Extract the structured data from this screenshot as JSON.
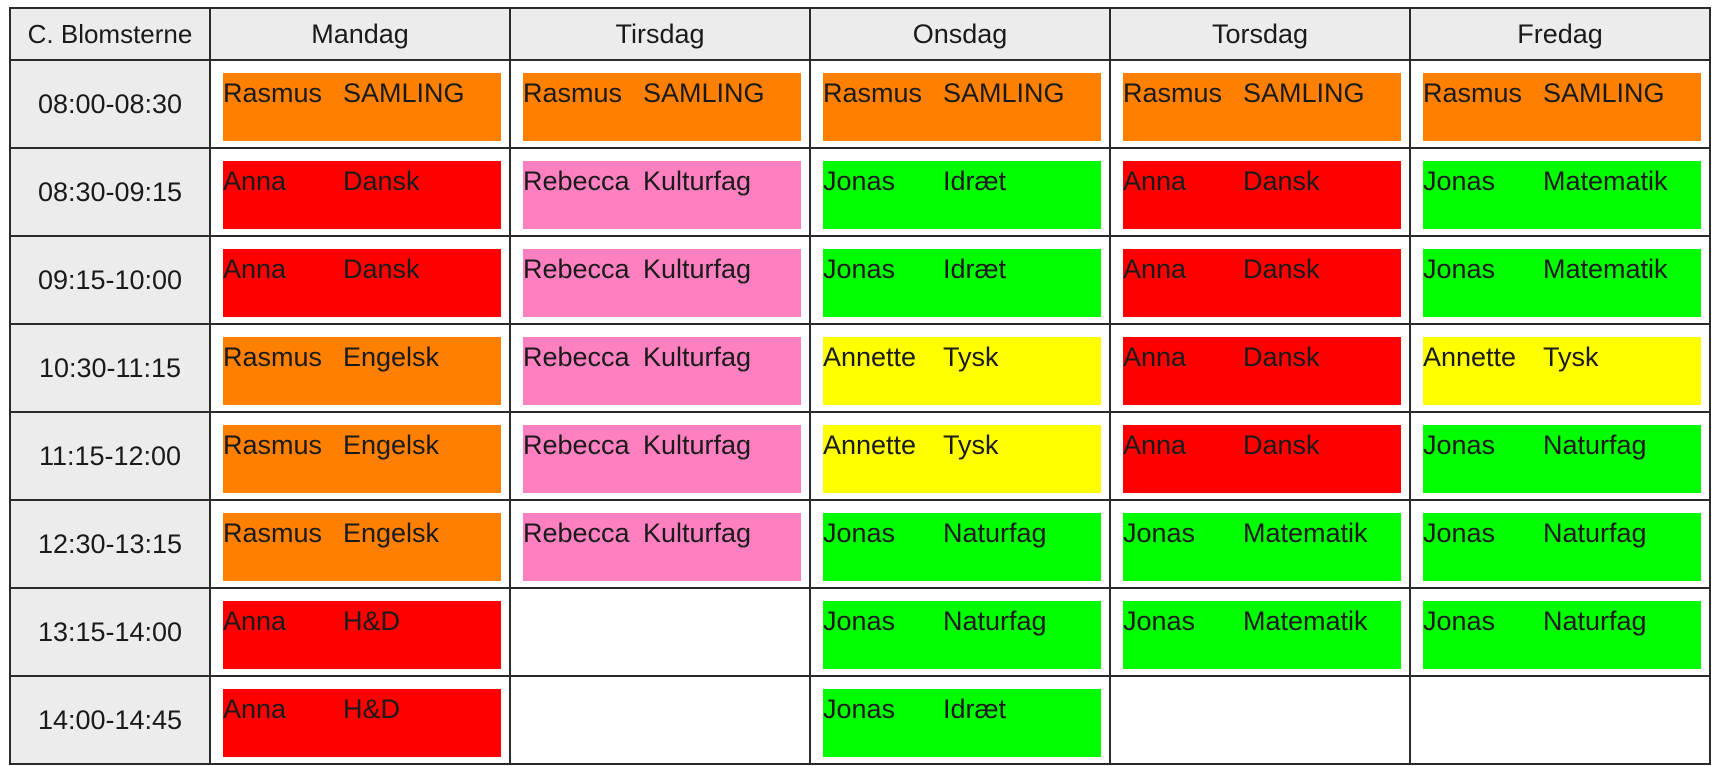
{
  "class_name": "C. Blomsterne",
  "days": [
    "Mandag",
    "Tirsdag",
    "Onsdag",
    "Torsdag",
    "Fredag"
  ],
  "subject_colors": {
    "SAMLING": "#ff8000",
    "Engelsk": "#ff8000",
    "Dansk": "#ff0000",
    "H&D": "#ff0000",
    "Kulturfag": "#ff80c0",
    "Idræt": "#00ff00",
    "Matematik": "#00ff00",
    "Naturfag": "#00ff00",
    "Tysk": "#ffff00"
  },
  "rows": [
    {
      "time": "08:00-08:30",
      "slots": [
        {
          "teacher": "Rasmus",
          "subject": "SAMLING",
          "color": "#ff8000"
        },
        {
          "teacher": "Rasmus",
          "subject": "SAMLING",
          "color": "#ff8000"
        },
        {
          "teacher": "Rasmus",
          "subject": "SAMLING",
          "color": "#ff8000"
        },
        {
          "teacher": "Rasmus",
          "subject": "SAMLING",
          "color": "#ff8000"
        },
        {
          "teacher": "Rasmus",
          "subject": "SAMLING",
          "color": "#ff8000"
        }
      ]
    },
    {
      "time": "08:30-09:15",
      "slots": [
        {
          "teacher": "Anna",
          "subject": "Dansk",
          "color": "#ff0000"
        },
        {
          "teacher": "Rebecca",
          "subject": "Kulturfag",
          "color": "#ff80c0"
        },
        {
          "teacher": "Jonas",
          "subject": "Idræt",
          "color": "#00ff00"
        },
        {
          "teacher": "Anna",
          "subject": "Dansk",
          "color": "#ff0000"
        },
        {
          "teacher": "Jonas",
          "subject": "Matematik",
          "color": "#00ff00"
        }
      ]
    },
    {
      "time": "09:15-10:00",
      "slots": [
        {
          "teacher": "Anna",
          "subject": "Dansk",
          "color": "#ff0000"
        },
        {
          "teacher": "Rebecca",
          "subject": "Kulturfag",
          "color": "#ff80c0"
        },
        {
          "teacher": "Jonas",
          "subject": "Idræt",
          "color": "#00ff00"
        },
        {
          "teacher": "Anna",
          "subject": "Dansk",
          "color": "#ff0000"
        },
        {
          "teacher": "Jonas",
          "subject": "Matematik",
          "color": "#00ff00"
        }
      ]
    },
    {
      "time": "10:30-11:15",
      "slots": [
        {
          "teacher": "Rasmus",
          "subject": "Engelsk",
          "color": "#ff8000"
        },
        {
          "teacher": "Rebecca",
          "subject": "Kulturfag",
          "color": "#ff80c0"
        },
        {
          "teacher": "Annette",
          "subject": "Tysk",
          "color": "#ffff00"
        },
        {
          "teacher": "Anna",
          "subject": "Dansk",
          "color": "#ff0000"
        },
        {
          "teacher": "Annette",
          "subject": "Tysk",
          "color": "#ffff00"
        }
      ]
    },
    {
      "time": "11:15-12:00",
      "slots": [
        {
          "teacher": "Rasmus",
          "subject": "Engelsk",
          "color": "#ff8000"
        },
        {
          "teacher": "Rebecca",
          "subject": "Kulturfag",
          "color": "#ff80c0"
        },
        {
          "teacher": "Annette",
          "subject": "Tysk",
          "color": "#ffff00"
        },
        {
          "teacher": "Anna",
          "subject": "Dansk",
          "color": "#ff0000"
        },
        {
          "teacher": "Jonas",
          "subject": "Naturfag",
          "color": "#00ff00"
        }
      ]
    },
    {
      "time": "12:30-13:15",
      "slots": [
        {
          "teacher": "Rasmus",
          "subject": "Engelsk",
          "color": "#ff8000"
        },
        {
          "teacher": "Rebecca",
          "subject": "Kulturfag",
          "color": "#ff80c0"
        },
        {
          "teacher": "Jonas",
          "subject": "Naturfag",
          "color": "#00ff00"
        },
        {
          "teacher": "Jonas",
          "subject": "Matematik",
          "color": "#00ff00"
        },
        {
          "teacher": "Jonas",
          "subject": "Naturfag",
          "color": "#00ff00"
        }
      ]
    },
    {
      "time": "13:15-14:00",
      "slots": [
        {
          "teacher": "Anna",
          "subject": "H&D",
          "color": "#ff0000"
        },
        null,
        {
          "teacher": "Jonas",
          "subject": "Naturfag",
          "color": "#00ff00"
        },
        {
          "teacher": "Jonas",
          "subject": "Matematik",
          "color": "#00ff00"
        },
        {
          "teacher": "Jonas",
          "subject": "Naturfag",
          "color": "#00ff00"
        }
      ]
    },
    {
      "time": "14:00-14:45",
      "slots": [
        {
          "teacher": "Anna",
          "subject": "H&D",
          "color": "#ff0000"
        },
        null,
        {
          "teacher": "Jonas",
          "subject": "Idræt",
          "color": "#00ff00"
        },
        null,
        null
      ]
    }
  ]
}
